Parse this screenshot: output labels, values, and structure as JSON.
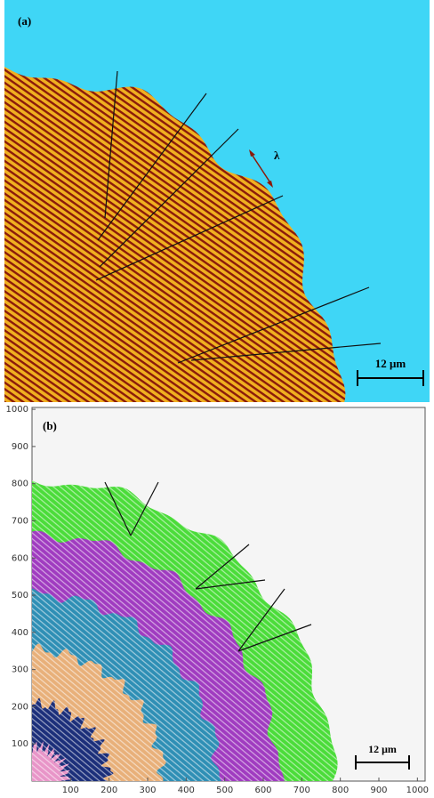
{
  "panel_a": {
    "label": "(a)",
    "lambda": "λ",
    "scale_bar": "12 μm"
  },
  "panel_b": {
    "label": "(b)",
    "scale_bar": "12 μm",
    "xlim": [
      0,
      1020
    ],
    "ylim": [
      0,
      1005
    ],
    "xticks": [
      100,
      200,
      300,
      400,
      500,
      600,
      700,
      800,
      900,
      1000
    ],
    "yticks": [
      100,
      200,
      300,
      400,
      500,
      600,
      700,
      800,
      900,
      1000
    ]
  }
}
